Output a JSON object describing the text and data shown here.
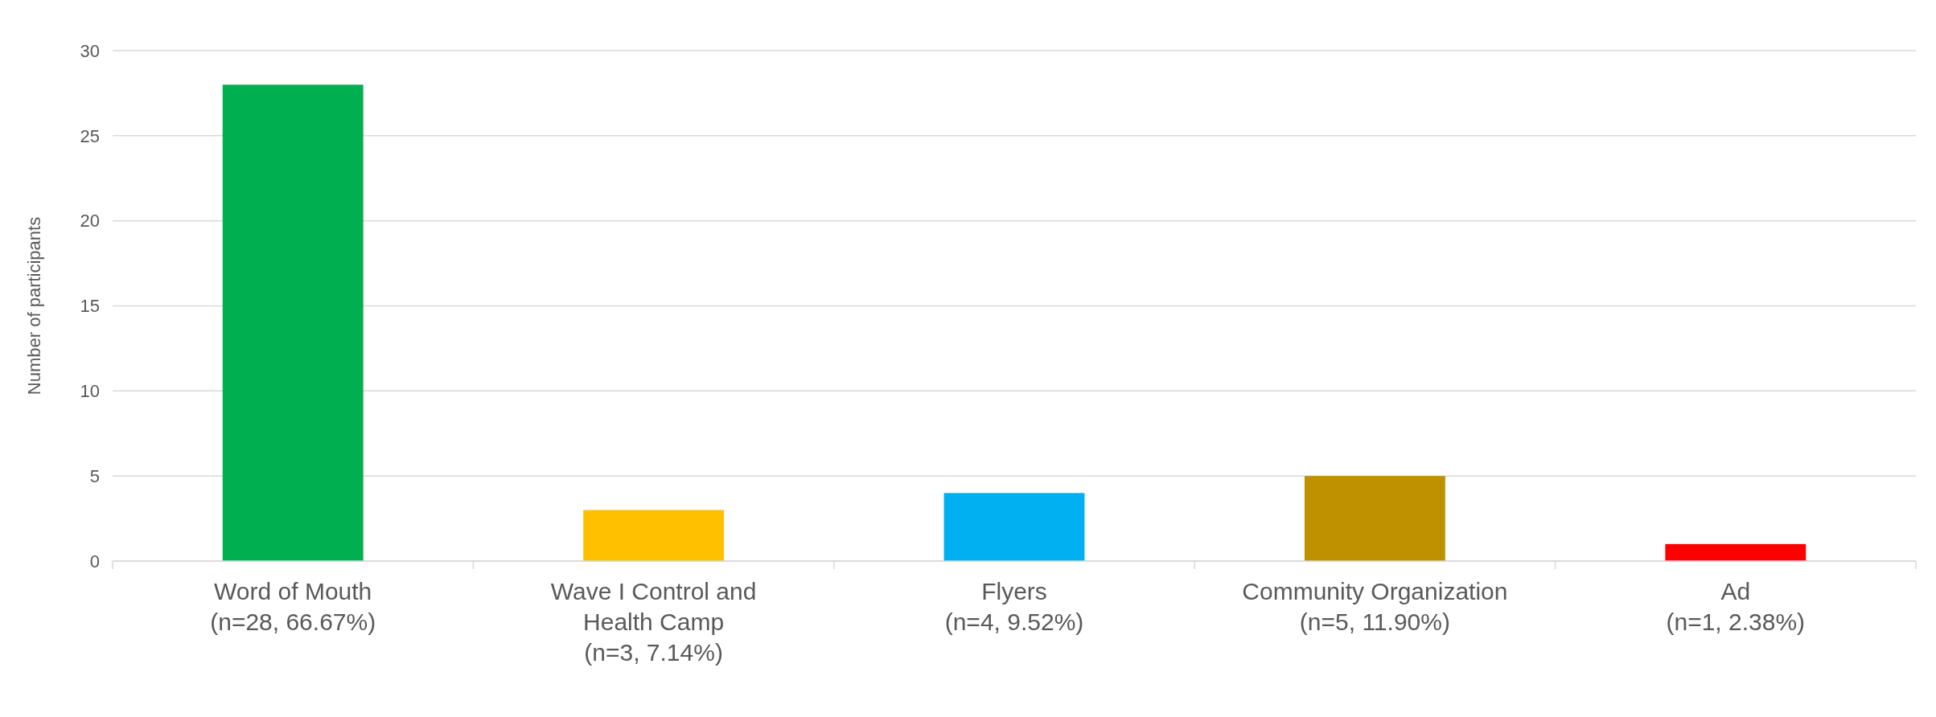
{
  "chart_data": {
    "type": "bar",
    "ylabel": "Number of participants",
    "categories": [
      "Word of Mouth (n=28, 66.67%)",
      "Wave I Control and Health Camp (n=3, 7.14%)",
      "Flyers (n=4, 9.52%)",
      "Community Organization (n=5, 11.90%)",
      "Ad (n=1, 2.38%)"
    ],
    "values": [
      28,
      3,
      4,
      5,
      1
    ],
    "colors": [
      "#00b050",
      "#ffc000",
      "#00b0f0",
      "#bf9000",
      "#ff0000"
    ],
    "ylim": [
      0,
      30
    ],
    "yticks": [
      0,
      5,
      10,
      15,
      20,
      25,
      30
    ],
    "grid": "y"
  }
}
